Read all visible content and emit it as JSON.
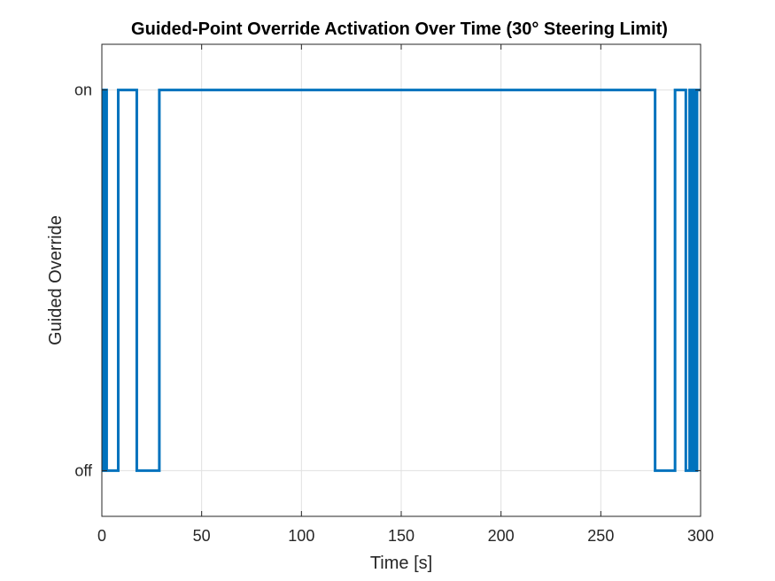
{
  "chart_data": {
    "type": "line",
    "title": "Guided-Point Override Activation Over Time (30° Steering Limit)",
    "xlabel": "Time [s]",
    "ylabel": "Guided Override",
    "xlim": [
      0,
      300
    ],
    "ylim": [
      -0.12,
      1.12
    ],
    "x_ticks": [
      0,
      50,
      100,
      150,
      200,
      250,
      300
    ],
    "y_ticks": [
      {
        "value": 0,
        "label": "off"
      },
      {
        "value": 1,
        "label": "on"
      }
    ],
    "grid": true,
    "line_color": "#0072BD",
    "step": true,
    "series": [
      {
        "x": [
          0,
          0.8,
          1.6,
          2.4,
          8.2,
          17.5,
          28.8,
          277.2,
          287.2,
          292.6,
          294.5,
          295.3,
          296.4,
          297.3,
          298.2
        ],
        "values": [
          1,
          0,
          1,
          0,
          1,
          0,
          1,
          0,
          1,
          0,
          1,
          0,
          1,
          0,
          1
        ]
      }
    ]
  }
}
